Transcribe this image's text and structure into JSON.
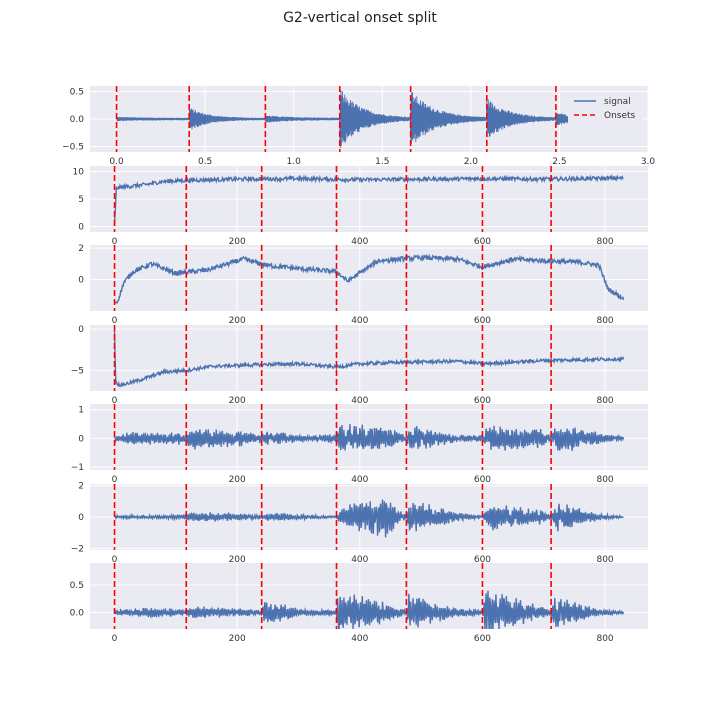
{
  "figure": {
    "title": "G2-vertical onset split"
  },
  "colors": {
    "axes_bg": "#EAEAF2",
    "grid": "#FFFFFF",
    "signal": "#4C72B0",
    "onset": "#FF0000"
  },
  "chart_data": [
    {
      "type": "line",
      "title": "",
      "xlabel": "",
      "ylabel": "",
      "xlim": [
        -0.15,
        3.0
      ],
      "ylim": [
        -0.6,
        0.6
      ],
      "xticks": [
        0.0,
        0.5,
        1.0,
        1.5,
        2.0,
        2.5,
        3.0
      ],
      "xtick_labels": [
        "0.0",
        "0.5",
        "1.0",
        "1.5",
        "2.0",
        "2.5",
        "3.0"
      ],
      "yticks": [
        -0.5,
        0.0,
        0.5
      ],
      "ytick_labels": [
        "−0.5",
        "0.0",
        "0.5"
      ],
      "grid": true,
      "legend": {
        "placement": "top-right",
        "entries": [
          "signal",
          "Onsets"
        ]
      },
      "onsets": [
        0.0,
        0.41,
        0.84,
        1.26,
        1.66,
        2.09,
        2.48
      ],
      "series": [
        {
          "name": "signal",
          "kind": "waveform",
          "duration": 2.88,
          "baseline_amplitude": 0.02,
          "bursts": [
            {
              "t": 0.0,
              "amplitude": 0.02,
              "decay": 0.2
            },
            {
              "t": 0.41,
              "amplitude": 0.2,
              "decay": 0.1
            },
            {
              "t": 0.84,
              "amplitude": 0.05,
              "decay": 0.15
            },
            {
              "t": 1.26,
              "amplitude": 0.55,
              "decay": 0.12
            },
            {
              "t": 1.66,
              "amplitude": 0.5,
              "decay": 0.13
            },
            {
              "t": 2.09,
              "amplitude": 0.35,
              "decay": 0.12
            },
            {
              "t": 2.48,
              "amplitude": 0.1,
              "decay": 0.1
            }
          ]
        }
      ]
    },
    {
      "type": "line",
      "title": "",
      "xlabel": "",
      "ylabel": "",
      "xlim": [
        -40,
        870
      ],
      "ylim": [
        -1,
        11
      ],
      "xticks": [
        0,
        200,
        400,
        600,
        800
      ],
      "xtick_labels": [
        "0",
        "200",
        "400",
        "600",
        "800"
      ],
      "yticks": [
        0,
        5,
        10
      ],
      "ytick_labels": [
        "0",
        "5",
        "10"
      ],
      "grid": true,
      "onsets": [
        0,
        117,
        240,
        362,
        476,
        600,
        712
      ],
      "series": [
        {
          "kind": "feature",
          "length": 830,
          "noise": 0.35,
          "control_x": [
            0,
            3,
            15,
            50,
            80,
            120,
            200,
            300,
            400,
            500,
            600,
            700,
            830
          ],
          "control_y": [
            0.3,
            7.0,
            7.2,
            7.6,
            8.2,
            8.4,
            8.6,
            8.7,
            8.5,
            8.6,
            8.7,
            8.6,
            8.8
          ]
        }
      ]
    },
    {
      "type": "line",
      "title": "",
      "xlabel": "",
      "ylabel": "",
      "xlim": [
        -40,
        870
      ],
      "ylim": [
        -2.0,
        2.2
      ],
      "xticks": [
        0,
        200,
        400,
        600,
        800
      ],
      "xtick_labels": [
        "0",
        "200",
        "400",
        "600",
        "800"
      ],
      "yticks": [
        0,
        2
      ],
      "ytick_labels": [
        "0",
        "2"
      ],
      "grid": true,
      "onsets": [
        0,
        117,
        240,
        362,
        476,
        600,
        712
      ],
      "series": [
        {
          "kind": "feature",
          "length": 830,
          "noise": 0.15,
          "control_x": [
            0,
            5,
            15,
            30,
            60,
            100,
            150,
            210,
            250,
            300,
            362,
            380,
            430,
            500,
            560,
            600,
            650,
            700,
            760,
            790,
            805,
            830
          ],
          "control_y": [
            -1.5,
            -1.4,
            -0.2,
            0.5,
            1.0,
            0.4,
            0.6,
            1.3,
            0.9,
            0.7,
            0.5,
            -0.1,
            1.2,
            1.4,
            1.3,
            0.8,
            1.3,
            1.2,
            1.1,
            0.9,
            -0.6,
            -1.2
          ]
        }
      ]
    },
    {
      "type": "line",
      "title": "",
      "xlabel": "",
      "ylabel": "",
      "xlim": [
        -40,
        870
      ],
      "ylim": [
        -7.5,
        0.5
      ],
      "xticks": [
        0,
        200,
        400,
        600,
        800
      ],
      "xtick_labels": [
        "0",
        "200",
        "400",
        "600",
        "800"
      ],
      "yticks": [
        -5,
        0
      ],
      "ytick_labels": [
        "−5",
        "0"
      ],
      "grid": true,
      "onsets": [
        0,
        117,
        240,
        362,
        476,
        600,
        712
      ],
      "series": [
        {
          "kind": "feature",
          "length": 830,
          "noise": 0.2,
          "control_x": [
            0,
            2,
            10,
            40,
            80,
            117,
            160,
            240,
            300,
            362,
            400,
            476,
            560,
            600,
            700,
            830
          ],
          "control_y": [
            -0.2,
            -6.5,
            -6.8,
            -6.2,
            -5.2,
            -5.0,
            -4.5,
            -4.3,
            -4.2,
            -4.6,
            -4.2,
            -4.0,
            -3.9,
            -4.2,
            -3.8,
            -3.6
          ]
        }
      ]
    },
    {
      "type": "line",
      "title": "",
      "xlabel": "",
      "ylabel": "",
      "xlim": [
        -40,
        870
      ],
      "ylim": [
        -1.1,
        1.2
      ],
      "xticks": [
        0,
        200,
        400,
        600,
        800
      ],
      "xtick_labels": [
        "0",
        "200",
        "400",
        "600",
        "800"
      ],
      "yticks": [
        -1,
        0,
        1
      ],
      "ytick_labels": [
        "−1",
        "0",
        "1"
      ],
      "grid": true,
      "onsets": [
        0,
        117,
        240,
        362,
        476,
        600,
        712
      ],
      "series": [
        {
          "kind": "oscillation",
          "length": 830,
          "baseline": 0.05,
          "base_noise": 0.06,
          "envelope_x": [
            0,
            30,
            117,
            120,
            200,
            240,
            250,
            320,
            362,
            370,
            440,
            476,
            480,
            560,
            600,
            610,
            700,
            712,
            720,
            790,
            830
          ],
          "envelope_y": [
            0.1,
            0.25,
            0.2,
            0.4,
            0.3,
            0.15,
            0.3,
            0.1,
            0.2,
            0.6,
            0.5,
            0.1,
            0.55,
            0.1,
            0.15,
            0.45,
            0.35,
            0.15,
            0.55,
            0.2,
            0.05
          ]
        }
      ]
    },
    {
      "type": "line",
      "title": "",
      "xlabel": "",
      "ylabel": "",
      "xlim": [
        -40,
        870
      ],
      "ylim": [
        -2.1,
        2.1
      ],
      "xticks": [
        0,
        200,
        400,
        600,
        800
      ],
      "xtick_labels": [
        "0",
        "200",
        "400",
        "600",
        "800"
      ],
      "yticks": [
        -2,
        0,
        2
      ],
      "ytick_labels": [
        "−2",
        "0",
        "2"
      ],
      "grid": true,
      "onsets": [
        0,
        117,
        240,
        362,
        476,
        600,
        712
      ],
      "series": [
        {
          "kind": "oscillation",
          "length": 830,
          "baseline": 0.0,
          "base_noise": 0.06,
          "envelope_x": [
            0,
            117,
            120,
            220,
            240,
            250,
            330,
            362,
            370,
            440,
            476,
            480,
            560,
            600,
            610,
            700,
            712,
            720,
            790,
            830
          ],
          "envelope_y": [
            0.1,
            0.15,
            0.35,
            0.2,
            0.1,
            0.3,
            0.1,
            0.05,
            0.7,
            1.4,
            0.1,
            1.2,
            0.3,
            0.05,
            0.9,
            0.5,
            0.1,
            1.0,
            0.2,
            0.05
          ]
        }
      ]
    },
    {
      "type": "line",
      "title": "",
      "xlabel": "",
      "ylabel": "",
      "xlim": [
        -40,
        870
      ],
      "ylim": [
        -0.3,
        0.9
      ],
      "xticks": [
        0,
        200,
        400,
        600,
        800
      ],
      "xtick_labels": [
        "0",
        "200",
        "400",
        "600",
        "800"
      ],
      "yticks": [
        0.0,
        0.5
      ],
      "ytick_labels": [
        "0.0",
        "0.5"
      ],
      "grid": true,
      "onsets": [
        0,
        117,
        240,
        362,
        476,
        600,
        712
      ],
      "series": [
        {
          "kind": "oscillation",
          "length": 830,
          "baseline": 0.0,
          "base_noise": 0.02,
          "envelope_x": [
            0,
            60,
            117,
            120,
            200,
            240,
            245,
            300,
            362,
            365,
            440,
            476,
            480,
            560,
            600,
            605,
            700,
            712,
            716,
            790,
            830
          ],
          "envelope_y": [
            0.04,
            0.1,
            0.05,
            0.12,
            0.08,
            0.05,
            0.3,
            0.06,
            0.05,
            0.45,
            0.2,
            0.05,
            0.35,
            0.08,
            0.05,
            0.45,
            0.1,
            0.05,
            0.35,
            0.06,
            0.03
          ]
        }
      ]
    }
  ]
}
